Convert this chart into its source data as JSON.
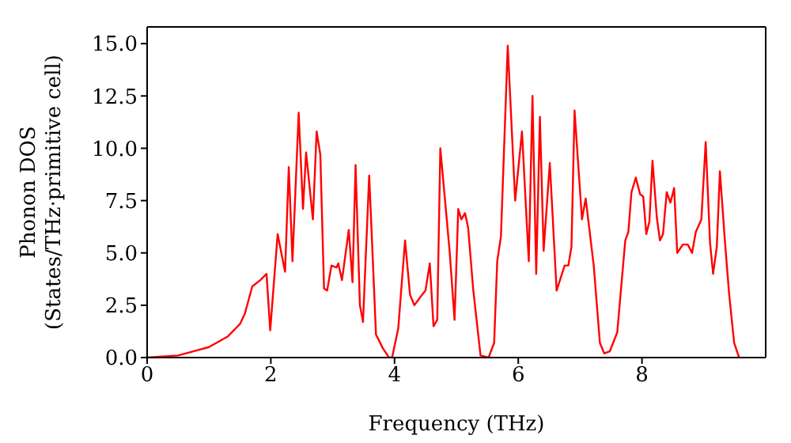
{
  "chart_data": {
    "type": "line",
    "xlabel": "Frequency (THz)",
    "ylabel": "Phonon DOS\n(States/THz·primitive cell)",
    "xlim": [
      0,
      10
    ],
    "xticks": [
      0,
      2,
      4,
      6,
      8
    ],
    "ylim": [
      0,
      15.8
    ],
    "yticks": [
      {
        "value": 0,
        "label": "0.0"
      },
      2.5,
      {
        "value": 5,
        "label": "5.0"
      },
      7.5,
      {
        "value": 10,
        "label": "10.0"
      },
      12.5,
      {
        "value": 15,
        "label": "15.0"
      }
    ],
    "legend": false,
    "marker": "none",
    "line_style": "solid",
    "x": [
      0,
      0.5,
      1.0,
      1.3,
      1.5,
      1.58,
      1.7,
      1.83,
      1.93,
      1.99,
      2.11,
      2.23,
      2.29,
      2.35,
      2.45,
      2.52,
      2.57,
      2.68,
      2.74,
      2.8,
      2.86,
      2.91,
      2.98,
      3.06,
      3.09,
      3.15,
      3.26,
      3.32,
      3.37,
      3.44,
      3.49,
      3.59,
      3.7,
      3.81,
      3.91,
      3.96,
      4.06,
      4.17,
      4.25,
      4.32,
      4.42,
      4.5,
      4.57,
      4.63,
      4.69,
      4.74,
      4.89,
      4.97,
      5.03,
      5.08,
      5.14,
      5.19,
      5.27,
      5.33,
      5.39,
      5.52,
      5.61,
      5.66,
      5.72,
      5.83,
      5.95,
      6.06,
      6.17,
      6.23,
      6.29,
      6.35,
      6.41,
      6.51,
      6.62,
      6.75,
      6.81,
      6.86,
      6.91,
      7.03,
      7.09,
      7.22,
      7.32,
      7.39,
      7.48,
      7.6,
      7.73,
      7.78,
      7.83,
      7.9,
      7.97,
      8.02,
      8.07,
      8.12,
      8.17,
      8.24,
      8.29,
      8.34,
      8.4,
      8.46,
      8.52,
      8.57,
      8.66,
      8.74,
      8.81,
      8.87,
      8.96,
      9.03,
      9.1,
      9.15,
      9.21,
      9.26,
      9.34,
      9.41,
      9.49,
      9.57
    ],
    "series": [
      {
        "color": "#ff0000",
        "values": [
          0,
          0.1,
          0.5,
          1.0,
          1.6,
          2.1,
          3.4,
          3.7,
          4.0,
          1.3,
          5.9,
          4.1,
          9.1,
          4.6,
          11.7,
          7.1,
          9.8,
          6.6,
          10.8,
          9.7,
          3.3,
          3.2,
          4.4,
          4.3,
          4.5,
          3.7,
          6.1,
          3.6,
          9.2,
          2.5,
          1.7,
          8.7,
          1.1,
          0.45,
          0,
          0,
          1.4,
          5.6,
          3.0,
          2.5,
          2.9,
          3.2,
          4.5,
          1.5,
          1.8,
          10.0,
          5.1,
          1.8,
          7.1,
          6.6,
          6.9,
          6.2,
          3.3,
          1.7,
          0.1,
          0,
          0.7,
          4.6,
          5.8,
          14.9,
          7.5,
          10.8,
          4.6,
          12.5,
          4.0,
          11.5,
          5.1,
          9.3,
          3.2,
          4.4,
          4.4,
          5.3,
          11.8,
          6.6,
          7.6,
          4.4,
          0.7,
          0.2,
          0.3,
          1.2,
          5.6,
          6.0,
          7.9,
          8.6,
          7.8,
          7.7,
          5.9,
          6.5,
          9.4,
          6.7,
          5.6,
          5.9,
          7.9,
          7.4,
          8.1,
          5.0,
          5.4,
          5.4,
          5.0,
          6.0,
          6.6,
          10.3,
          5.5,
          4.0,
          5.3,
          8.9,
          5.6,
          3.0,
          0.7,
          0
        ]
      }
    ]
  }
}
